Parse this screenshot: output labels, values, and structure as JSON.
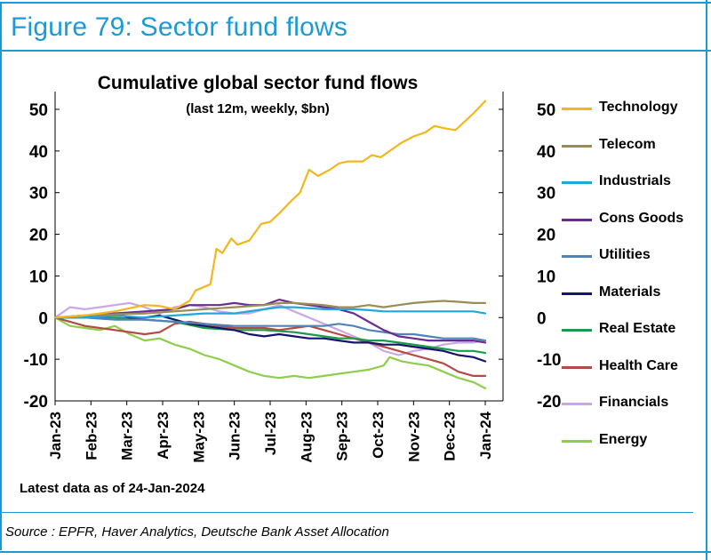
{
  "figure_title": "Figure 79: Sector fund flows",
  "latest_note": "Latest data as of 24-Jan-2024",
  "source_note": "Source : EPFR, Haver Analytics, Deutsche Bank Asset Allocation",
  "chart_data": {
    "type": "line",
    "title": "Cumulative global sector fund flows",
    "subtitle": "(last 12m, weekly, $bn)",
    "xlabel": "",
    "ylabel": "",
    "ylim": [
      -20,
      50
    ],
    "yticks": [
      -20,
      -10,
      0,
      10,
      20,
      30,
      40,
      50
    ],
    "ytick_labels": [
      "-20",
      "-10",
      "0",
      "10",
      "20",
      "30",
      "40",
      "50"
    ],
    "xticks": [
      "Jan-23",
      "Feb-23",
      "Mar-23",
      "Apr-23",
      "May-23",
      "Jun-23",
      "Jul-23",
      "Aug-23",
      "Sep-23",
      "Oct-23",
      "Nov-23",
      "Dec-23",
      "Jan-24"
    ],
    "legend_position": "right",
    "grid": false,
    "series": [
      {
        "name": "Technology",
        "color": "#f2b71c",
        "points": [
          [
            0,
            0
          ],
          [
            1,
            0.5
          ],
          [
            2,
            1.5
          ],
          [
            3,
            3
          ],
          [
            3.5,
            2.8
          ],
          [
            4,
            2
          ],
          [
            4.5,
            4
          ],
          [
            4.7,
            6.5
          ],
          [
            5.2,
            8
          ],
          [
            5.4,
            16.5
          ],
          [
            5.6,
            15.5
          ],
          [
            5.9,
            19
          ],
          [
            6.1,
            17.5
          ],
          [
            6.5,
            18.5
          ],
          [
            6.9,
            22.5
          ],
          [
            7.2,
            23
          ],
          [
            7.5,
            25
          ],
          [
            7.9,
            28
          ],
          [
            8.2,
            30
          ],
          [
            8.5,
            35.5
          ],
          [
            8.8,
            34
          ],
          [
            9.2,
            35.5
          ],
          [
            9.5,
            37
          ],
          [
            9.8,
            37.5
          ],
          [
            10.3,
            37.5
          ],
          [
            10.6,
            39
          ],
          [
            10.9,
            38.5
          ],
          [
            11.2,
            40
          ],
          [
            11.6,
            42
          ],
          [
            12,
            43.5
          ],
          [
            12.4,
            44.5
          ],
          [
            12.7,
            46
          ],
          [
            13,
            45.5
          ],
          [
            13.4,
            45
          ],
          [
            13.7,
            47
          ],
          [
            14,
            49
          ],
          [
            14.4,
            52
          ]
        ]
      },
      {
        "name": "Telecom",
        "color": "#9a8c55",
        "points": [
          [
            0,
            0
          ],
          [
            1,
            0.5
          ],
          [
            2,
            0.8
          ],
          [
            3,
            1
          ],
          [
            4,
            1.5
          ],
          [
            5,
            2
          ],
          [
            6,
            2.5
          ],
          [
            7,
            3
          ],
          [
            7.5,
            3.5
          ],
          [
            8,
            3.5
          ],
          [
            9,
            3
          ],
          [
            9.5,
            2.5
          ],
          [
            10,
            2.5
          ],
          [
            10.5,
            3
          ],
          [
            11,
            2.5
          ],
          [
            11.5,
            3
          ],
          [
            12,
            3.5
          ],
          [
            12.5,
            3.8
          ],
          [
            13,
            4
          ],
          [
            13.5,
            3.8
          ],
          [
            14,
            3.5
          ],
          [
            14.4,
            3.5
          ]
        ]
      },
      {
        "name": "Industrials",
        "color": "#1ea8dc",
        "points": [
          [
            0,
            0
          ],
          [
            1,
            0
          ],
          [
            2,
            0.5
          ],
          [
            3,
            0
          ],
          [
            4,
            0.5
          ],
          [
            5,
            1
          ],
          [
            6,
            1
          ],
          [
            7,
            2
          ],
          [
            7.5,
            2.5
          ],
          [
            8,
            2.5
          ],
          [
            9,
            2
          ],
          [
            10,
            2
          ],
          [
            10.5,
            1.8
          ],
          [
            11,
            1.5
          ],
          [
            11.5,
            1.5
          ],
          [
            12,
            1.5
          ],
          [
            12.5,
            1.5
          ],
          [
            13,
            1.5
          ],
          [
            13.5,
            1.5
          ],
          [
            14,
            1.5
          ],
          [
            14.4,
            1
          ]
        ]
      },
      {
        "name": "Cons Goods",
        "color": "#6a2d8f",
        "points": [
          [
            0,
            0
          ],
          [
            1,
            0.5
          ],
          [
            2,
            1
          ],
          [
            3,
            1.5
          ],
          [
            4,
            2
          ],
          [
            4.5,
            3
          ],
          [
            5,
            3
          ],
          [
            5.5,
            3
          ],
          [
            6,
            3.5
          ],
          [
            6.5,
            3
          ],
          [
            7,
            3
          ],
          [
            7.5,
            4.3
          ],
          [
            8,
            3.5
          ],
          [
            8.5,
            3
          ],
          [
            9,
            2.5
          ],
          [
            9.5,
            2
          ],
          [
            10,
            1
          ],
          [
            10.5,
            -1
          ],
          [
            11,
            -3
          ],
          [
            11.5,
            -4.5
          ],
          [
            12,
            -5
          ],
          [
            12.5,
            -5.5
          ],
          [
            13,
            -5.5
          ],
          [
            13.5,
            -5.5
          ],
          [
            14,
            -5.5
          ],
          [
            14.4,
            -6
          ]
        ]
      },
      {
        "name": "Utilities",
        "color": "#4f84b9",
        "points": [
          [
            0,
            0
          ],
          [
            1,
            0
          ],
          [
            2,
            -0.5
          ],
          [
            3,
            -0.5
          ],
          [
            4,
            -1
          ],
          [
            5,
            -1.5
          ],
          [
            6,
            -2
          ],
          [
            7,
            -2
          ],
          [
            8,
            -2
          ],
          [
            9,
            -2
          ],
          [
            9.5,
            -1.5
          ],
          [
            10,
            -2
          ],
          [
            10.5,
            -3
          ],
          [
            11,
            -3.5
          ],
          [
            11.5,
            -4
          ],
          [
            12,
            -4
          ],
          [
            12.5,
            -4.5
          ],
          [
            13,
            -5
          ],
          [
            13.5,
            -5
          ],
          [
            14,
            -5
          ],
          [
            14.4,
            -5.5
          ]
        ]
      },
      {
        "name": "Materials",
        "color": "#14146e",
        "points": [
          [
            0,
            0
          ],
          [
            1,
            0
          ],
          [
            1.5,
            0.5
          ],
          [
            2,
            1
          ],
          [
            2.5,
            0
          ],
          [
            3,
            0
          ],
          [
            3.5,
            0.5
          ],
          [
            4,
            -0.5
          ],
          [
            4.5,
            -1.5
          ],
          [
            5,
            -2
          ],
          [
            5.5,
            -2.5
          ],
          [
            6,
            -3
          ],
          [
            6.5,
            -4
          ],
          [
            7,
            -4.5
          ],
          [
            7.5,
            -4
          ],
          [
            8,
            -4.5
          ],
          [
            8.5,
            -5
          ],
          [
            9,
            -5
          ],
          [
            9.5,
            -5.5
          ],
          [
            10,
            -6
          ],
          [
            10.5,
            -6
          ],
          [
            11,
            -6.5
          ],
          [
            11.5,
            -6.5
          ],
          [
            12,
            -7
          ],
          [
            12.5,
            -7.5
          ],
          [
            13,
            -8
          ],
          [
            13.5,
            -9
          ],
          [
            14,
            -9.5
          ],
          [
            14.4,
            -10.5
          ]
        ]
      },
      {
        "name": "Real Estate",
        "color": "#1c9a49",
        "points": [
          [
            0,
            0
          ],
          [
            1,
            0
          ],
          [
            2,
            0
          ],
          [
            3,
            -0.5
          ],
          [
            4,
            -1
          ],
          [
            5,
            -2.5
          ],
          [
            6,
            -3
          ],
          [
            7,
            -3
          ],
          [
            8,
            -3.5
          ],
          [
            8.5,
            -4
          ],
          [
            9,
            -4.5
          ],
          [
            9.5,
            -5
          ],
          [
            10,
            -5
          ],
          [
            10.5,
            -5.5
          ],
          [
            11,
            -5.5
          ],
          [
            11.5,
            -6
          ],
          [
            12,
            -6.5
          ],
          [
            12.5,
            -7
          ],
          [
            13,
            -7.5
          ],
          [
            13.5,
            -8
          ],
          [
            14,
            -8
          ],
          [
            14.4,
            -8.5
          ]
        ]
      },
      {
        "name": "Health Care",
        "color": "#b44b43",
        "points": [
          [
            0,
            0
          ],
          [
            1,
            -2
          ],
          [
            2,
            -3
          ],
          [
            3,
            -4
          ],
          [
            3.5,
            -3.5
          ],
          [
            4,
            -1.5
          ],
          [
            4.5,
            -1
          ],
          [
            5,
            -1.5
          ],
          [
            5.5,
            -2
          ],
          [
            6,
            -2.5
          ],
          [
            6.5,
            -2.5
          ],
          [
            7,
            -2.5
          ],
          [
            7.5,
            -3
          ],
          [
            8,
            -2.5
          ],
          [
            8.5,
            -2
          ],
          [
            9,
            -3
          ],
          [
            9.5,
            -4
          ],
          [
            10,
            -5
          ],
          [
            10.5,
            -6
          ],
          [
            11,
            -7
          ],
          [
            11.5,
            -8
          ],
          [
            12,
            -9
          ],
          [
            12.5,
            -10
          ],
          [
            13,
            -11
          ],
          [
            13.5,
            -13
          ],
          [
            14,
            -14
          ],
          [
            14.4,
            -14
          ]
        ]
      },
      {
        "name": "Financials",
        "color": "#c8a8e9",
        "points": [
          [
            0,
            0
          ],
          [
            0.5,
            2.5
          ],
          [
            1,
            2
          ],
          [
            1.5,
            2.5
          ],
          [
            2,
            3
          ],
          [
            2.5,
            3.5
          ],
          [
            3,
            2.5
          ],
          [
            3.5,
            1
          ],
          [
            4,
            2.5
          ],
          [
            4.5,
            3
          ],
          [
            5,
            2.5
          ],
          [
            5.5,
            1.5
          ],
          [
            6,
            1
          ],
          [
            6.5,
            1
          ],
          [
            7,
            2
          ],
          [
            7.5,
            3
          ],
          [
            8,
            1.5
          ],
          [
            8.5,
            0
          ],
          [
            9,
            -1.5
          ],
          [
            9.5,
            -3
          ],
          [
            10,
            -4.5
          ],
          [
            10.5,
            -6
          ],
          [
            11,
            -8
          ],
          [
            11.5,
            -9
          ],
          [
            12,
            -8
          ],
          [
            12.5,
            -7.5
          ],
          [
            13,
            -6.5
          ],
          [
            13.5,
            -6
          ],
          [
            14,
            -6
          ],
          [
            14.4,
            -5.5
          ]
        ]
      },
      {
        "name": "Energy",
        "color": "#8fcd4d",
        "points": [
          [
            0,
            0
          ],
          [
            0.5,
            -2
          ],
          [
            1,
            -2.5
          ],
          [
            1.5,
            -3
          ],
          [
            2,
            -2
          ],
          [
            2.5,
            -4
          ],
          [
            3,
            -5.5
          ],
          [
            3.5,
            -5
          ],
          [
            4,
            -6.5
          ],
          [
            4.5,
            -7.5
          ],
          [
            5,
            -9
          ],
          [
            5.5,
            -10
          ],
          [
            6,
            -11.5
          ],
          [
            6.5,
            -13
          ],
          [
            7,
            -14
          ],
          [
            7.5,
            -14.5
          ],
          [
            8,
            -14
          ],
          [
            8.5,
            -14.5
          ],
          [
            9,
            -14
          ],
          [
            9.5,
            -13.5
          ],
          [
            10,
            -13
          ],
          [
            10.5,
            -12.5
          ],
          [
            11,
            -11.5
          ],
          [
            11.2,
            -9.5
          ],
          [
            11.6,
            -10.5
          ],
          [
            12,
            -11
          ],
          [
            12.5,
            -11.5
          ],
          [
            13,
            -13
          ],
          [
            13.5,
            -14.5
          ],
          [
            14,
            -15.5
          ],
          [
            14.4,
            -17
          ]
        ]
      }
    ]
  }
}
